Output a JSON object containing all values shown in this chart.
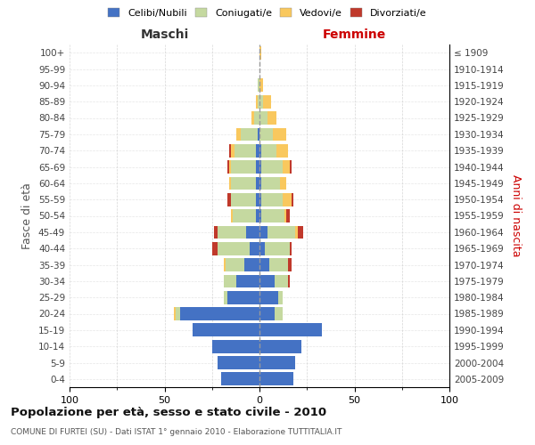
{
  "age_groups": [
    "0-4",
    "5-9",
    "10-14",
    "15-19",
    "20-24",
    "25-29",
    "30-34",
    "35-39",
    "40-44",
    "45-49",
    "50-54",
    "55-59",
    "60-64",
    "65-69",
    "70-74",
    "75-79",
    "80-84",
    "85-89",
    "90-94",
    "95-99",
    "100+"
  ],
  "birth_years": [
    "2005-2009",
    "2000-2004",
    "1995-1999",
    "1990-1994",
    "1985-1989",
    "1980-1984",
    "1975-1979",
    "1970-1974",
    "1965-1969",
    "1960-1964",
    "1955-1959",
    "1950-1954",
    "1945-1949",
    "1940-1944",
    "1935-1939",
    "1930-1934",
    "1925-1929",
    "1920-1924",
    "1915-1919",
    "1910-1914",
    "≤ 1909"
  ],
  "male_celibi": [
    20,
    22,
    25,
    35,
    42,
    17,
    12,
    8,
    5,
    7,
    2,
    2,
    2,
    2,
    2,
    1,
    0,
    0,
    0,
    0,
    0
  ],
  "male_coniugati": [
    0,
    0,
    0,
    0,
    2,
    2,
    7,
    10,
    17,
    15,
    12,
    13,
    13,
    13,
    11,
    9,
    3,
    1,
    1,
    0,
    0
  ],
  "male_vedovi": [
    0,
    0,
    0,
    0,
    1,
    0,
    0,
    1,
    0,
    0,
    1,
    0,
    1,
    1,
    2,
    2,
    1,
    1,
    0,
    0,
    0
  ],
  "male_divorziati": [
    0,
    0,
    0,
    0,
    0,
    0,
    0,
    0,
    3,
    2,
    0,
    2,
    0,
    1,
    1,
    0,
    0,
    0,
    0,
    0,
    0
  ],
  "female_celibi": [
    18,
    19,
    22,
    33,
    8,
    10,
    8,
    5,
    3,
    4,
    1,
    1,
    1,
    1,
    1,
    0,
    0,
    0,
    0,
    0,
    0
  ],
  "female_coniugati": [
    0,
    0,
    0,
    0,
    4,
    2,
    7,
    10,
    13,
    15,
    12,
    11,
    10,
    11,
    8,
    7,
    4,
    2,
    0,
    0,
    0
  ],
  "female_vedovi": [
    0,
    0,
    0,
    0,
    0,
    0,
    0,
    0,
    0,
    1,
    1,
    5,
    3,
    4,
    6,
    7,
    5,
    4,
    2,
    0,
    1
  ],
  "female_divorziati": [
    0,
    0,
    0,
    0,
    0,
    0,
    1,
    2,
    1,
    3,
    2,
    1,
    0,
    1,
    0,
    0,
    0,
    0,
    0,
    0,
    0
  ],
  "color_celibi": "#4472c4",
  "color_coniugati": "#c5d9a0",
  "color_vedovi": "#f9c85e",
  "color_divorziati": "#c0392b",
  "title": "Popolazione per età, sesso e stato civile - 2010",
  "subtitle": "COMUNE DI FURTEI (SU) - Dati ISTAT 1° gennaio 2010 - Elaborazione TUTTITALIA.IT",
  "label_maschi": "Maschi",
  "label_femmine": "Femmine",
  "ylabel_left": "Fasce di età",
  "ylabel_right": "Anni di nascita",
  "xlim": 100,
  "xticks": [
    100,
    75,
    50,
    25,
    0,
    25,
    50,
    75,
    100
  ],
  "bg_color": "#ffffff",
  "grid_color": "#cccccc",
  "legend_labels": [
    "Celibi/Nubili",
    "Coniugati/e",
    "Vedovi/e",
    "Divorziati/e"
  ]
}
